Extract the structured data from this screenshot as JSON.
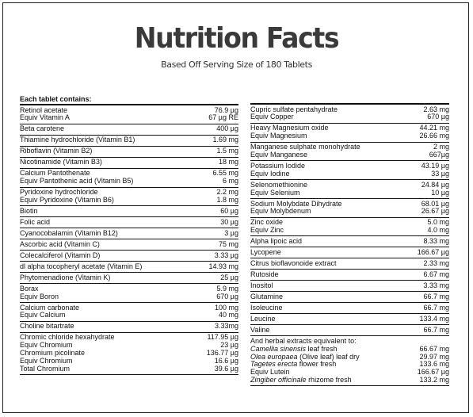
{
  "header": {
    "title": "Nutrition Facts",
    "subtitle": "Based Off Serving Size of 180 Tablets"
  },
  "left": {
    "heading": "Each tablet contains:",
    "groups": [
      {
        "rows": [
          {
            "name": "Retinol acetate",
            "amount": "76.9 µg"
          },
          {
            "name": "Equiv Vitamin A",
            "amount": "67 µg RE"
          }
        ]
      },
      {
        "rows": [
          {
            "name": "Beta carotene",
            "amount": "400 µg"
          }
        ]
      },
      {
        "rows": [
          {
            "name": "Thiamine hydrochloride (Vitamin B1)",
            "amount": "1.69 mg"
          }
        ]
      },
      {
        "rows": [
          {
            "name": "Riboflavin (Vitamin B2)",
            "amount": "1.5 mg"
          }
        ]
      },
      {
        "rows": [
          {
            "name": "Nicotinamide (Vitamin B3)",
            "amount": "18 mg"
          }
        ]
      },
      {
        "rows": [
          {
            "name": "Calcium Pantothenate",
            "amount": "6.55 mg"
          },
          {
            "name": "Equiv Pantothenic acid (Vitamin B5)",
            "amount": "6 mg"
          }
        ]
      },
      {
        "rows": [
          {
            "name": "Pyridoxine hydrochloride",
            "amount": "2.2 mg"
          },
          {
            "name": "Equiv Pyridoxine (Vitamin B6)",
            "amount": "1.8 mg"
          }
        ]
      },
      {
        "rows": [
          {
            "name": "Biotin",
            "amount": "60 µg"
          }
        ]
      },
      {
        "rows": [
          {
            "name": "Folic acid",
            "amount": "30 µg"
          }
        ]
      },
      {
        "rows": [
          {
            "name": "Cyanocobalamin (Vitamin B12)",
            "amount": "3 µg"
          }
        ]
      },
      {
        "rows": [
          {
            "name": "Ascorbic acid (Vitamin C)",
            "amount": "75 mg"
          }
        ]
      },
      {
        "rows": [
          {
            "name": "Colecalciferol (Vitamin D)",
            "amount": "3.33 µg"
          }
        ]
      },
      {
        "rows": [
          {
            "name": "dl alpha tocopheryl acetate (Vitamin E)",
            "amount": "14.93 mg"
          }
        ]
      },
      {
        "rows": [
          {
            "name": "Phytomenadione (Vitamin K)",
            "amount": "25 µg"
          }
        ]
      },
      {
        "rows": [
          {
            "name": "Borax",
            "amount": "5.9 mg"
          },
          {
            "name": "Equiv Boron",
            "amount": "670 µg"
          }
        ]
      },
      {
        "rows": [
          {
            "name": "Calcium carbonate",
            "amount": "100 mg"
          },
          {
            "name": "Equiv Calcium",
            "amount": "40 mg"
          }
        ]
      },
      {
        "rows": [
          {
            "name": "Choline bitartrate",
            "amount": "3.33mg"
          }
        ]
      },
      {
        "rows": [
          {
            "name": "Chromic chloride hexahydrate",
            "amount": "117.95 µg"
          },
          {
            "name": "Equiv Chromium",
            "amount": "23 µg"
          },
          {
            "name": "Chromium picolinate",
            "amount": "136.77 µg"
          },
          {
            "name": "Equiv Chromium",
            "amount": "16.6 µg"
          },
          {
            "name": "Total Chromium",
            "amount": "39.6 µg"
          }
        ]
      }
    ]
  },
  "right": {
    "groups": [
      {
        "rows": [
          {
            "name": "Cupric sulfate pentahydrate",
            "amount": "2.63 mg"
          },
          {
            "name": "Equiv Copper",
            "amount": "670 µg"
          }
        ]
      },
      {
        "rows": [
          {
            "name": "Heavy Magnesium oxide",
            "amount": "44.21 mg"
          },
          {
            "name": "Equiv Magnesium",
            "amount": "26.66 mg"
          }
        ]
      },
      {
        "rows": [
          {
            "name": "Manganese sulphate monohydrate",
            "amount": "2 mg"
          },
          {
            "name": "Equiv Manganese",
            "amount": "667µg"
          }
        ]
      },
      {
        "rows": [
          {
            "name": "Potassium Iodide",
            "amount": "43.19 µg"
          },
          {
            "name": "Equiv Iodine",
            "amount": "33 µg"
          }
        ]
      },
      {
        "rows": [
          {
            "name": "Selenomethionine",
            "amount": "24.84 µg"
          },
          {
            "name": "Equiv Selenium",
            "amount": "10 µg"
          }
        ]
      },
      {
        "rows": [
          {
            "name": "Sodium Molybdate Dihydrate",
            "amount": "68.01 µg"
          },
          {
            "name": "Equiv Molybdenum",
            "amount": "26.67 µg"
          }
        ]
      },
      {
        "rows": [
          {
            "name": "Zinc oxide",
            "amount": "5.0 mg"
          },
          {
            "name": "Equiv Zinc",
            "amount": "4.0 mg"
          }
        ]
      },
      {
        "rows": [
          {
            "name": "Alpha lipoic acid",
            "amount": "8.33 mg"
          }
        ]
      },
      {
        "rows": [
          {
            "name": "Lycopene",
            "amount": "166.67 µg"
          }
        ]
      },
      {
        "rows": [
          {
            "name": "Citrus bioflavonoide extract",
            "amount": "2.33 mg"
          }
        ]
      },
      {
        "rows": [
          {
            "name": "Rutoside",
            "amount": "6.67 mg"
          }
        ]
      },
      {
        "rows": [
          {
            "name": "Inositol",
            "amount": "3.33 mg"
          }
        ]
      },
      {
        "rows": [
          {
            "name": "Glutamine",
            "amount": "66.7 mg"
          }
        ]
      },
      {
        "rows": [
          {
            "name": "Isoleucine",
            "amount": "66.7 mg"
          }
        ]
      },
      {
        "rows": [
          {
            "name": "Leucine",
            "amount": "133.4 mg"
          }
        ]
      },
      {
        "rows": [
          {
            "name": "Valine",
            "amount": "66.7 mg"
          }
        ]
      },
      {
        "rows": [
          {
            "name": "And herbal extracts equivalent to:"
          },
          {
            "species": "Camellia sinensis",
            "part": "leaf fresh",
            "amount": "66.67 mg"
          },
          {
            "species": "Olea europaea",
            "part": "(Olive leaf) leaf dry",
            "amount": "29.97 mg"
          },
          {
            "species": "Tagetes erecta",
            "part": "flower fresh",
            "amount": "133.6 mg"
          },
          {
            "name": "Equiv Lutein",
            "amount": "166.67 µg"
          },
          {
            "species": "Zingiber officinale",
            "part": "rhizome fresh",
            "amount": "133.2 mg"
          }
        ]
      }
    ]
  }
}
